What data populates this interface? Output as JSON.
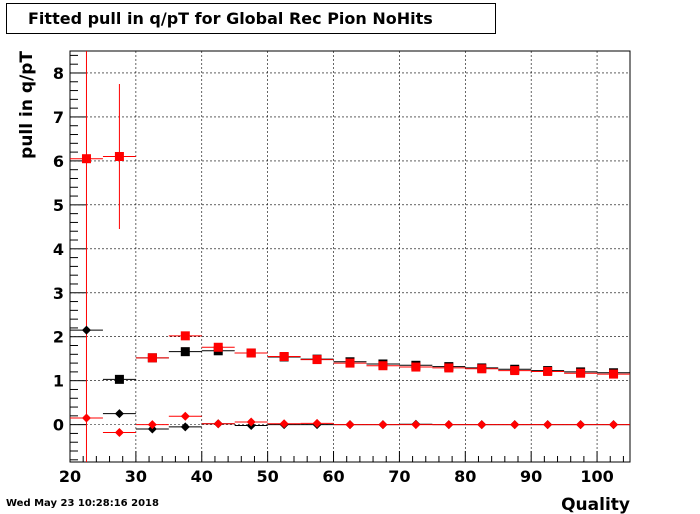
{
  "chart_data": {
    "type": "scatter",
    "title": "Fitted pull in q/pT for Global Rec Pion NoHits",
    "xlabel": "Quality",
    "ylabel": "pull in q/pT",
    "xlim": [
      20,
      105
    ],
    "ylim": [
      -0.85,
      8.5
    ],
    "x_ticks": [
      20,
      30,
      40,
      50,
      60,
      70,
      80,
      90,
      100
    ],
    "y_ticks": [
      0,
      1,
      2,
      3,
      4,
      5,
      6,
      7,
      8
    ],
    "grid": true,
    "legend": "none",
    "bin_width": 5,
    "series": [
      {
        "marker": "square",
        "color": "#000000",
        "x": [
          27.5,
          32.5,
          37.5,
          42.5,
          47.5,
          52.5,
          57.5,
          62.5,
          67.5,
          72.5,
          77.5,
          82.5,
          87.5,
          92.5,
          97.5,
          102.5
        ],
        "y": [
          1.03,
          1.52,
          1.66,
          1.68,
          1.63,
          1.54,
          1.49,
          1.43,
          1.38,
          1.35,
          1.32,
          1.29,
          1.26,
          1.23,
          1.2,
          1.18
        ],
        "yerr": [
          0.0,
          0.05,
          0.03,
          0.02,
          0.02,
          0.02,
          0.02,
          0.02,
          0.02,
          0.02,
          0.02,
          0.02,
          0.02,
          0.02,
          0.02,
          0.02
        ]
      },
      {
        "marker": "square",
        "color": "#ff0000",
        "x": [
          22.5,
          27.5,
          32.5,
          37.5,
          42.5,
          47.5,
          52.5,
          57.5,
          62.5,
          67.5,
          72.5,
          77.5,
          82.5,
          87.5,
          92.5,
          97.5,
          102.5
        ],
        "y": [
          6.05,
          6.1,
          1.52,
          2.02,
          1.76,
          1.63,
          1.55,
          1.48,
          1.4,
          1.34,
          1.31,
          1.29,
          1.27,
          1.23,
          1.21,
          1.17,
          1.15
        ],
        "yerr": [
          6.9,
          1.65,
          0.05,
          0.04,
          0.03,
          0.02,
          0.02,
          0.02,
          0.02,
          0.02,
          0.02,
          0.02,
          0.02,
          0.02,
          0.02,
          0.02,
          0.02
        ]
      },
      {
        "marker": "diamond",
        "color": "#000000",
        "x": [
          22.5,
          27.5,
          32.5,
          37.5,
          42.5,
          47.5,
          52.5,
          57.5,
          62.5,
          67.5,
          72.5,
          77.5,
          82.5,
          87.5,
          92.5,
          97.5,
          102.5
        ],
        "y": [
          2.15,
          0.25,
          -0.1,
          -0.05,
          0.02,
          -0.02,
          0.0,
          0.0,
          0.0,
          0.0,
          0.01,
          0.0,
          0.0,
          0.0,
          0.0,
          0.0,
          0.0
        ],
        "yerr": [
          0.0,
          0.0,
          0.03,
          0.02,
          0.02,
          0.02,
          0.01,
          0.01,
          0.01,
          0.01,
          0.01,
          0.01,
          0.01,
          0.01,
          0.01,
          0.01,
          0.01
        ]
      },
      {
        "marker": "diamond",
        "color": "#ff0000",
        "x": [
          22.5,
          27.5,
          32.5,
          37.5,
          42.5,
          47.5,
          52.5,
          57.5,
          62.5,
          67.5,
          72.5,
          77.5,
          82.5,
          87.5,
          92.5,
          97.5,
          102.5
        ],
        "y": [
          0.15,
          -0.18,
          0.0,
          0.19,
          0.02,
          0.06,
          0.02,
          0.03,
          0.0,
          0.0,
          0.0,
          0.0,
          0.0,
          0.0,
          0.0,
          0.0,
          0.0
        ],
        "yerr": [
          0.0,
          0.0,
          0.03,
          0.02,
          0.02,
          0.02,
          0.01,
          0.01,
          0.01,
          0.01,
          0.01,
          0.01,
          0.01,
          0.01,
          0.01,
          0.01,
          0.01
        ]
      }
    ]
  },
  "footer": {
    "timestamp": "Wed May 23 10:28:16 2018"
  }
}
